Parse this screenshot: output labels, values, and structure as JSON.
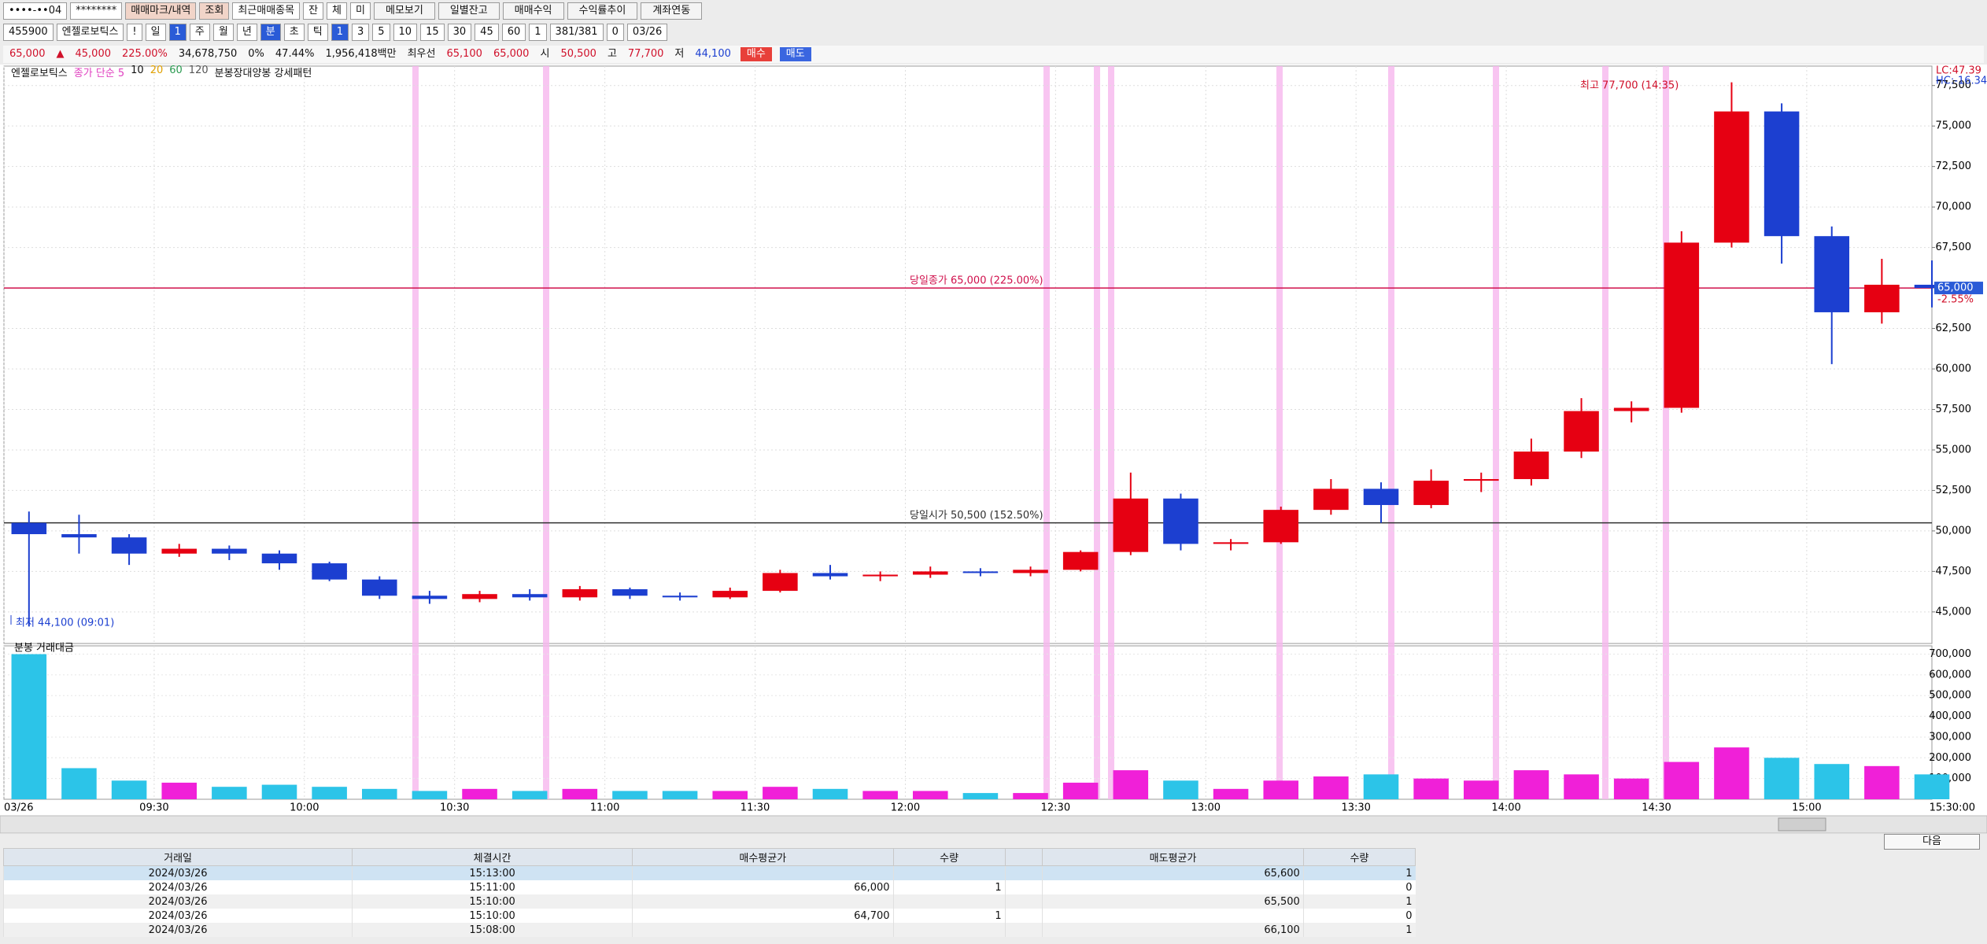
{
  "toolbar": {
    "row1": [
      "••••-••04",
      "********",
      "매매마크/내역",
      "조회",
      "최근매매종목",
      "잔",
      "체",
      "미",
      "메모보기",
      "일별잔고",
      "매매수익",
      "수익률추이",
      "계좌연동"
    ],
    "row2": [
      "455900",
      "엔젤로보틱스",
      "!",
      "일",
      "1",
      "주",
      "월",
      "년",
      "분",
      "초",
      "틱",
      "1",
      "3",
      "5",
      "10",
      "15",
      "30",
      "45",
      "60",
      "1",
      "381/381",
      "0",
      "03/26"
    ],
    "row3": [
      "65,000",
      "▲",
      "45,000",
      "225.00%",
      "34,678,750",
      "0%",
      "47.44%",
      "1,956,418백만",
      "최우선",
      "65,100",
      "65,000",
      "시",
      "50,500",
      "고",
      "77,700",
      "저",
      "44,100",
      "매수",
      "매도"
    ]
  },
  "legend": [
    "엔젤로보틱스",
    "종가 단순 5",
    "10",
    "20",
    "60",
    "120",
    "분봉장대양봉 강세패턴"
  ],
  "chart_data": {
    "type": "candlestick",
    "up_color": "#e60012",
    "down_color": "#1c3fd0",
    "grid": true,
    "x": [
      0,
      10,
      20,
      30,
      40,
      50,
      60,
      70,
      80,
      90,
      100,
      110,
      120,
      130,
      140,
      150,
      160,
      170,
      180,
      190,
      200,
      210,
      220,
      230,
      240,
      250,
      260,
      270,
      280,
      290,
      300,
      310,
      320,
      330,
      340,
      350,
      360,
      370,
      380
    ],
    "open": [
      50500,
      49800,
      49600,
      48600,
      48900,
      48600,
      48000,
      47000,
      46000,
      45800,
      46100,
      45900,
      46400,
      46000,
      45900,
      46300,
      47400,
      47200,
      47300,
      47500,
      47400,
      47600,
      48700,
      52000,
      49200,
      49300,
      51300,
      52600,
      51600,
      53100,
      53200,
      54900,
      57400,
      57600,
      67800,
      75900,
      68200,
      63500,
      65200
    ],
    "high": [
      51200,
      51000,
      49800,
      49200,
      49100,
      48800,
      48100,
      47200,
      46300,
      46300,
      46400,
      46600,
      46500,
      46200,
      46500,
      47600,
      47900,
      47500,
      47800,
      47700,
      47800,
      48800,
      53600,
      52300,
      49500,
      51500,
      53200,
      53000,
      53800,
      53600,
      55700,
      58200,
      58000,
      68500,
      77700,
      76400,
      68800,
      66800,
      66700
    ],
    "low": [
      44100,
      48600,
      47900,
      48400,
      48200,
      47600,
      46900,
      45800,
      45500,
      45600,
      45700,
      45700,
      45800,
      45700,
      45800,
      46200,
      47000,
      46900,
      47100,
      47200,
      47200,
      47500,
      48500,
      48800,
      48800,
      49200,
      51000,
      50500,
      51400,
      52400,
      52800,
      54500,
      56700,
      57300,
      67500,
      66500,
      60300,
      62800,
      63800
    ],
    "close": [
      49800,
      49600,
      48600,
      48900,
      48600,
      48000,
      47000,
      46000,
      45800,
      46100,
      45900,
      46400,
      46000,
      45900,
      46300,
      47400,
      47200,
      47300,
      47500,
      47400,
      47600,
      48700,
      52000,
      49200,
      49300,
      51300,
      52600,
      51600,
      53100,
      53200,
      54900,
      57400,
      57600,
      67800,
      75900,
      68200,
      63500,
      65200,
      65000
    ],
    "xlim": [
      0,
      385
    ],
    "xticks": [
      {
        "value": 0,
        "label": "03/26"
      },
      {
        "value": 30,
        "label": "09:30"
      },
      {
        "value": 60,
        "label": "10:00"
      },
      {
        "value": 90,
        "label": "10:30"
      },
      {
        "value": 120,
        "label": "11:00"
      },
      {
        "value": 150,
        "label": "11:30"
      },
      {
        "value": 180,
        "label": "12:00"
      },
      {
        "value": 210,
        "label": "12:30"
      },
      {
        "value": 240,
        "label": "13:00"
      },
      {
        "value": 270,
        "label": "13:30"
      },
      {
        "value": 300,
        "label": "14:00"
      },
      {
        "value": 330,
        "label": "14:30"
      },
      {
        "value": 360,
        "label": "15:00"
      }
    ],
    "x_end_label": "15:30:00",
    "ylim": [
      43050,
      78700
    ],
    "yticks": [
      {
        "value": 45000,
        "label": "45,000"
      },
      {
        "value": 47500,
        "label": "47,500"
      },
      {
        "value": 50000,
        "label": "50,000"
      },
      {
        "value": 52500,
        "label": "52,500"
      },
      {
        "value": 55000,
        "label": "55,000"
      },
      {
        "value": 57500,
        "label": "57,500"
      },
      {
        "value": 60000,
        "label": "60,000"
      },
      {
        "value": 62500,
        "label": "62,500"
      },
      {
        "value": 65000,
        "label": "65,000"
      },
      {
        "value": 67500,
        "label": "67,500"
      },
      {
        "value": 70000,
        "label": "70,000"
      },
      {
        "value": 72500,
        "label": "72,500"
      },
      {
        "value": 75000,
        "label": "75,000"
      },
      {
        "value": 77500,
        "label": "77,500"
      }
    ],
    "reference_lines": [
      {
        "value": 65000,
        "label": "당일종가 65,000 (225.00%)",
        "color": "#d0104c"
      },
      {
        "value": 50500,
        "label": "당일시가 50,500 (152.50%)",
        "color": "#303030"
      }
    ],
    "annotations": {
      "high": "최고 77,700 (14:35)",
      "low": "최저 44,100 (09:01)"
    },
    "right_labels": {
      "lc": "LC:47.39",
      "hc": "HC:-16.34",
      "price_tag": "65,000",
      "change": "-2.55%"
    },
    "volume": {
      "title": "분봉 거래대금",
      "up_color": "#f020d8",
      "down_color": "#2cc4e8",
      "values": [
        700000,
        150000,
        90000,
        80000,
        60000,
        70000,
        60000,
        50000,
        40000,
        50000,
        40000,
        50000,
        40000,
        40000,
        40000,
        60000,
        50000,
        40000,
        40000,
        30000,
        30000,
        80000,
        140000,
        90000,
        50000,
        90000,
        110000,
        120000,
        100000,
        90000,
        140000,
        120000,
        100000,
        180000,
        250000,
        200000,
        170000,
        160000,
        120000
      ],
      "ylim": [
        0,
        740000
      ],
      "yticks": [
        {
          "value": 100000,
          "label": "100,000"
        },
        {
          "value": 200000,
          "label": "200,000"
        },
        {
          "value": 300000,
          "label": "300,000"
        },
        {
          "value": 400000,
          "label": "400,000"
        },
        {
          "value": 500000,
          "label": "500,000"
        },
        {
          "value": 600000,
          "label": "600,000"
        },
        {
          "value": 700000,
          "label": "700,000"
        }
      ]
    }
  },
  "table": {
    "headers": [
      "거래일",
      "체결시간",
      "매수평균가",
      "수량",
      null,
      "매도평균가",
      "수량"
    ],
    "rows": [
      [
        "2024/03/26",
        "15:13:00",
        null,
        null,
        null,
        "65,600",
        1
      ],
      [
        "2024/03/26",
        "15:11:00",
        "66,000",
        1,
        null,
        null,
        0
      ],
      [
        "2024/03/26",
        "15:10:00",
        null,
        null,
        null,
        "65,500",
        1
      ],
      [
        "2024/03/26",
        "15:10:00",
        "64,700",
        1,
        null,
        null,
        0
      ],
      [
        "2024/03/26",
        "15:08:00",
        null,
        null,
        null,
        "66,100",
        1
      ]
    ]
  },
  "next_button": "다음"
}
